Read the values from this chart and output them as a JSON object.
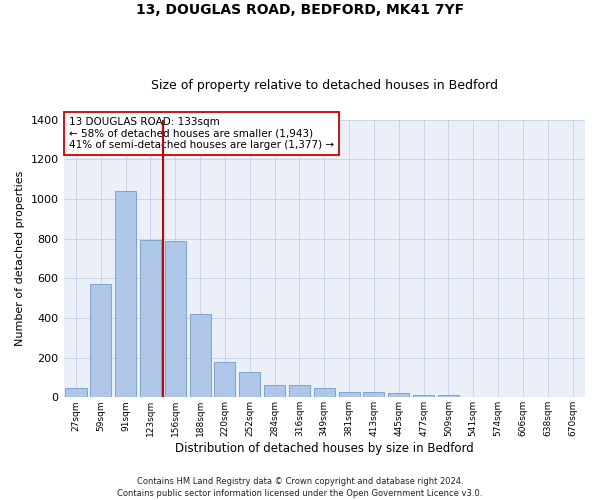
{
  "title": "13, DOUGLAS ROAD, BEDFORD, MK41 7YF",
  "subtitle": "Size of property relative to detached houses in Bedford",
  "xlabel": "Distribution of detached houses by size in Bedford",
  "ylabel": "Number of detached properties",
  "categories": [
    "27sqm",
    "59sqm",
    "91sqm",
    "123sqm",
    "156sqm",
    "188sqm",
    "220sqm",
    "252sqm",
    "284sqm",
    "316sqm",
    "349sqm",
    "381sqm",
    "413sqm",
    "445sqm",
    "477sqm",
    "509sqm",
    "541sqm",
    "574sqm",
    "606sqm",
    "638sqm",
    "670sqm"
  ],
  "values": [
    45,
    573,
    1040,
    795,
    790,
    420,
    180,
    128,
    60,
    60,
    45,
    28,
    28,
    20,
    12,
    12,
    0,
    0,
    0,
    0,
    0
  ],
  "bar_color": "#aec6e8",
  "bar_edge_color": "#6090c0",
  "vline_x": 3.5,
  "vline_color": "#cc0000",
  "annotation_line1": "13 DOUGLAS ROAD: 133sqm",
  "annotation_line2": "← 58% of detached houses are smaller (1,943)",
  "annotation_line3": "41% of semi-detached houses are larger (1,377) →",
  "annotation_box_edgecolor": "#cc0000",
  "annotation_bg": "#ffffff",
  "ylim_min": 0,
  "ylim_max": 1400,
  "yticks": [
    0,
    200,
    400,
    600,
    800,
    1000,
    1200,
    1400
  ],
  "grid_color": "#c8d4e8",
  "bg_color": "#eaeff8",
  "footer1": "Contains HM Land Registry data © Crown copyright and database right 2024.",
  "footer2": "Contains public sector information licensed under the Open Government Licence v3.0.",
  "title_fontsize": 10,
  "subtitle_fontsize": 9,
  "ylabel_fontsize": 8,
  "xlabel_fontsize": 8.5,
  "ytick_fontsize": 8,
  "xtick_fontsize": 6.5,
  "footer_fontsize": 6,
  "annot_fontsize": 7.5
}
